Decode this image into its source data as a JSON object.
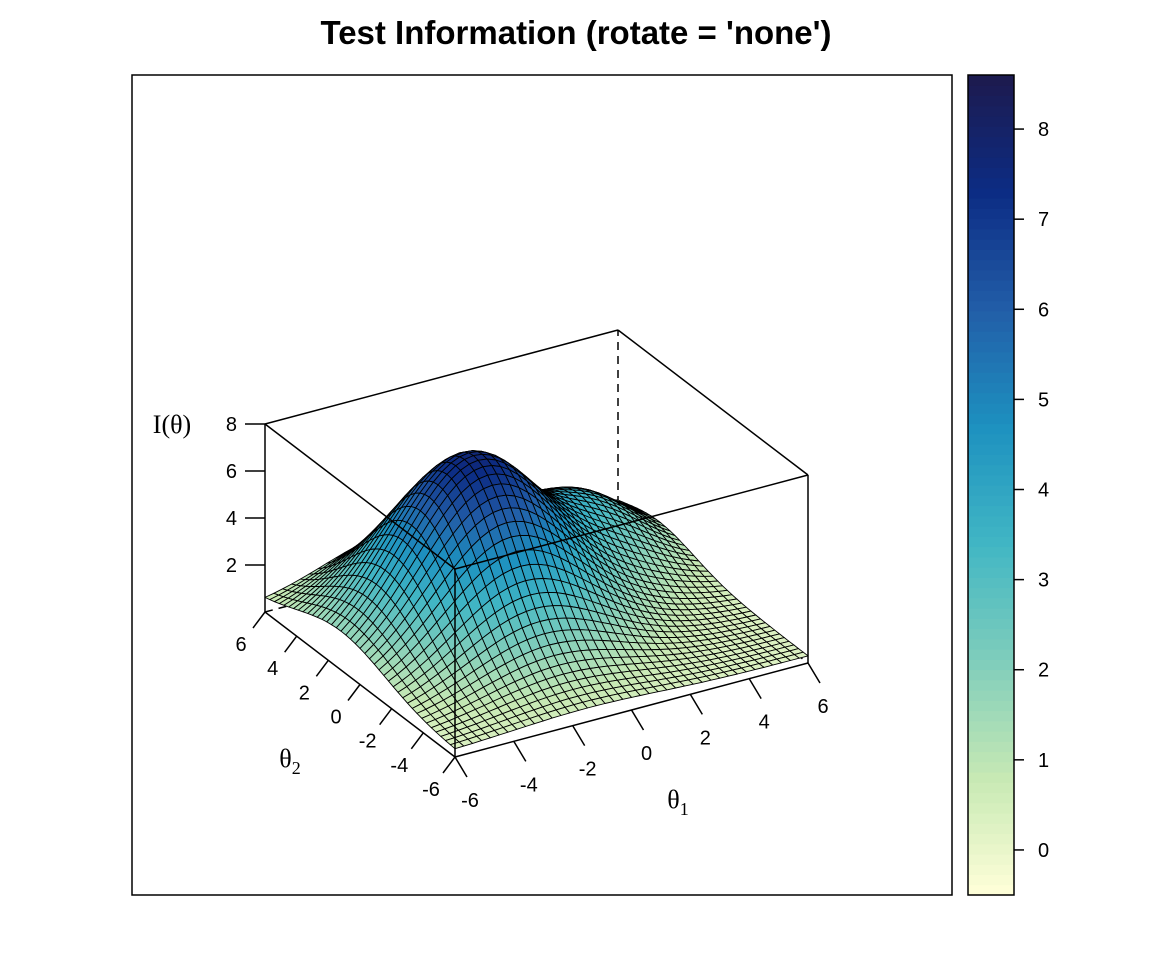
{
  "chart_data": {
    "type": "surface3d",
    "title": "Test Information (rotate = 'none')",
    "xlabel": "θ1",
    "ylabel": "θ2",
    "zlabel": "I(θ)",
    "x_range": [
      -6,
      6
    ],
    "y_range": [
      -6,
      6
    ],
    "z_range": [
      0,
      8
    ],
    "x_ticks": [
      "-6",
      "-4",
      "-2",
      "0",
      "2",
      "4",
      "6"
    ],
    "y_ticks": [
      "-6",
      "-4",
      "-2",
      "0",
      "2",
      "4",
      "6"
    ],
    "z_ticks": [
      "2",
      "4",
      "6",
      "8"
    ],
    "grid_n": 41,
    "surface_peaks": [
      {
        "theta1": -1.5,
        "theta2": 1.2,
        "height": 7.6
      },
      {
        "theta1": 3.5,
        "theta2": 3.5,
        "height": 4.3
      }
    ],
    "surface_near_min": 0.3,
    "colorbar": {
      "range": [
        -0.5,
        8.6
      ],
      "ticks": [
        "0",
        "1",
        "2",
        "3",
        "4",
        "5",
        "6",
        "7",
        "8"
      ],
      "colormap": [
        "#ffffd9",
        "#c7e9b4",
        "#7fcdbb",
        "#41b6c4",
        "#1d91c0",
        "#225ea8",
        "#0c2c84",
        "#1d1a4e"
      ]
    },
    "grid": false
  }
}
